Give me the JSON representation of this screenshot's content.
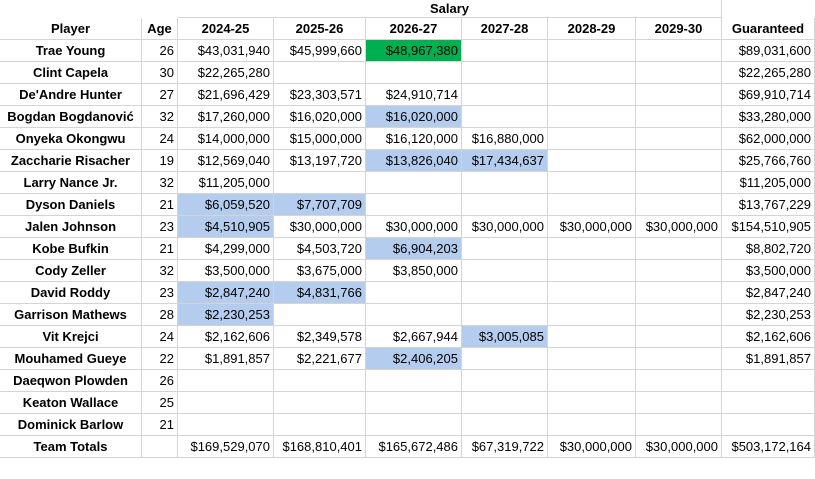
{
  "group_header": "Salary",
  "columns": [
    "Player",
    "Age",
    "2024-25",
    "2025-26",
    "2026-27",
    "2027-28",
    "2028-29",
    "2029-30",
    "Guaranteed"
  ],
  "rows": [
    [
      "Trae Young",
      26,
      "$43,031,940",
      "$45,999,660",
      "$48,967,380",
      null,
      null,
      null,
      "$89,031,600"
    ],
    [
      "Clint Capela",
      30,
      "$22,265,280",
      null,
      null,
      null,
      null,
      null,
      "$22,265,280"
    ],
    [
      "De'Andre Hunter",
      27,
      "$21,696,429",
      "$23,303,571",
      "$24,910,714",
      null,
      null,
      null,
      "$69,910,714"
    ],
    [
      "Bogdan Bogdanović",
      32,
      "$17,260,000",
      "$16,020,000",
      "$16,020,000",
      null,
      null,
      null,
      "$33,280,000"
    ],
    [
      "Onyeka Okongwu",
      24,
      "$14,000,000",
      "$15,000,000",
      "$16,120,000",
      "$16,880,000",
      null,
      null,
      "$62,000,000"
    ],
    [
      "Zaccharie Risacher",
      19,
      "$12,569,040",
      "$13,197,720",
      "$13,826,040",
      "$17,434,637",
      null,
      null,
      "$25,766,760"
    ],
    [
      "Larry Nance Jr.",
      32,
      "$11,205,000",
      null,
      null,
      null,
      null,
      null,
      "$11,205,000"
    ],
    [
      "Dyson Daniels",
      21,
      "$6,059,520",
      "$7,707,709",
      null,
      null,
      null,
      null,
      "$13,767,229"
    ],
    [
      "Jalen Johnson",
      23,
      "$4,510,905",
      "$30,000,000",
      "$30,000,000",
      "$30,000,000",
      "$30,000,000",
      "$30,000,000",
      "$154,510,905"
    ],
    [
      "Kobe Bufkin",
      21,
      "$4,299,000",
      "$4,503,720",
      "$6,904,203",
      null,
      null,
      null,
      "$8,802,720"
    ],
    [
      "Cody Zeller",
      32,
      "$3,500,000",
      "$3,675,000",
      "$3,850,000",
      null,
      null,
      null,
      "$3,500,000"
    ],
    [
      "David Roddy",
      23,
      "$2,847,240",
      "$4,831,766",
      null,
      null,
      null,
      null,
      "$2,847,240"
    ],
    [
      "Garrison Mathews",
      28,
      "$2,230,253",
      null,
      null,
      null,
      null,
      null,
      "$2,230,253"
    ],
    [
      "Vit Krejci",
      24,
      "$2,162,606",
      "$2,349,578",
      "$2,667,944",
      "$3,005,085",
      null,
      null,
      "$2,162,606"
    ],
    [
      "Mouhamed Gueye",
      22,
      "$1,891,857",
      "$2,221,677",
      "$2,406,205",
      null,
      null,
      null,
      "$1,891,857"
    ],
    [
      "Daeqwon Plowden",
      26,
      null,
      null,
      null,
      null,
      null,
      null,
      null
    ],
    [
      "Keaton Wallace",
      25,
      null,
      null,
      null,
      null,
      null,
      null,
      null
    ],
    [
      "Dominick Barlow",
      21,
      null,
      null,
      null,
      null,
      null,
      null,
      null
    ],
    [
      "Team Totals",
      null,
      "$169,529,070",
      "$168,810,401",
      "$165,672,486",
      "$67,319,722",
      "$30,000,000",
      "$30,000,000",
      "$503,172,164"
    ]
  ],
  "cell_fills": [
    {
      "row": 0,
      "col": 4,
      "color": "#00b050"
    },
    {
      "row": 3,
      "col": 4,
      "color": "#b4cdee"
    },
    {
      "row": 5,
      "col": 4,
      "color": "#b4cdee"
    },
    {
      "row": 5,
      "col": 5,
      "color": "#b4cdee"
    },
    {
      "row": 7,
      "col": 2,
      "color": "#b4cdee"
    },
    {
      "row": 7,
      "col": 3,
      "color": "#b4cdee"
    },
    {
      "row": 8,
      "col": 2,
      "color": "#b4cdee"
    },
    {
      "row": 9,
      "col": 4,
      "color": "#b4cdee"
    },
    {
      "row": 11,
      "col": 2,
      "color": "#b4cdee"
    },
    {
      "row": 11,
      "col": 3,
      "color": "#b4cdee"
    },
    {
      "row": 12,
      "col": 2,
      "color": "#b4cdee"
    },
    {
      "row": 13,
      "col": 5,
      "color": "#b4cdee"
    },
    {
      "row": 14,
      "col": 4,
      "color": "#b4cdee"
    }
  ]
}
